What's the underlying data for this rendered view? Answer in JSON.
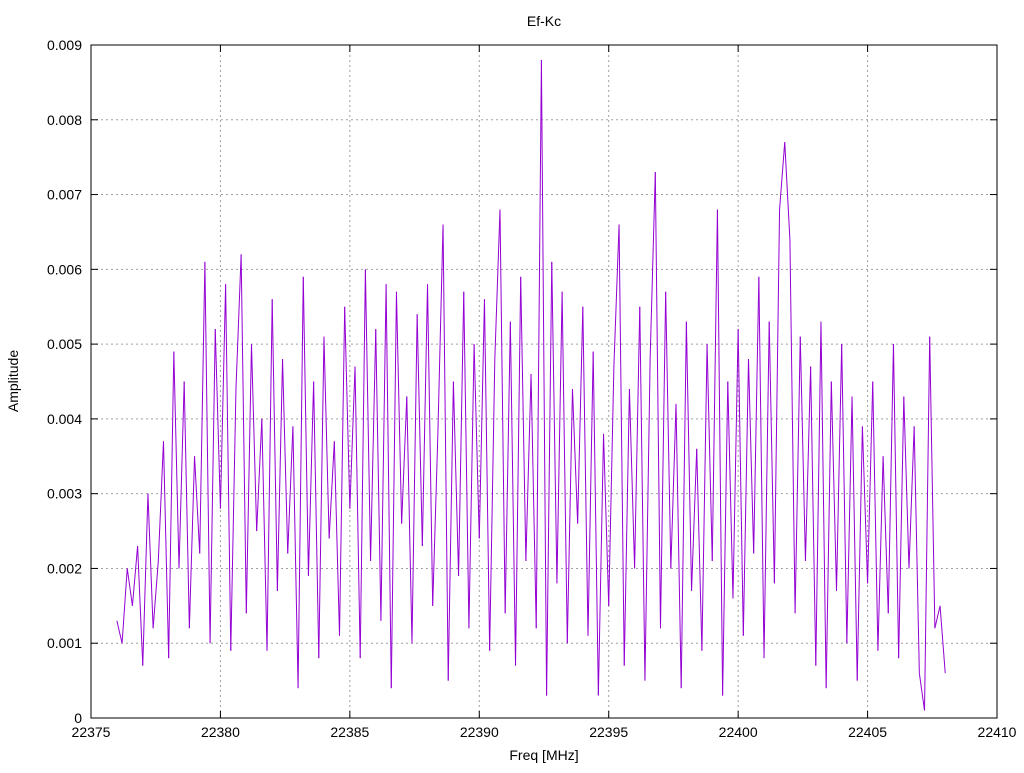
{
  "chart_data": {
    "type": "line",
    "title": "Ef-Kc",
    "xlabel": "Freq [MHz]",
    "ylabel": "Amplitude",
    "xlim": [
      22375,
      22410
    ],
    "ylim": [
      0,
      0.009
    ],
    "xticks": [
      "22375",
      "22380",
      "22385",
      "22390",
      "22395",
      "22400",
      "22405",
      "22410"
    ],
    "yticks": [
      "0",
      "0.001",
      "0.002",
      "0.003",
      "0.004",
      "0.005",
      "0.006",
      "0.007",
      "0.008",
      "0.009"
    ],
    "grid": true,
    "color": "#9400d3",
    "series": [
      {
        "x": [
          22376.0,
          22376.2,
          22376.4,
          22376.6,
          22376.8,
          22377.0,
          22377.2,
          22377.4,
          22377.6,
          22377.8,
          22378.0,
          22378.2,
          22378.4,
          22378.6,
          22378.8,
          22379.0,
          22379.2,
          22379.4,
          22379.6,
          22379.8,
          22380.0,
          22380.2,
          22380.4,
          22380.6,
          22380.8,
          22381.0,
          22381.2,
          22381.4,
          22381.6,
          22381.8,
          22382.0,
          22382.2,
          22382.4,
          22382.6,
          22382.8,
          22383.0,
          22383.2,
          22383.4,
          22383.6,
          22383.8,
          22384.0,
          22384.2,
          22384.4,
          22384.6,
          22384.8,
          22385.0,
          22385.2,
          22385.4,
          22385.6,
          22385.8,
          22386.0,
          22386.2,
          22386.4,
          22386.6,
          22386.8,
          22387.0,
          22387.2,
          22387.4,
          22387.6,
          22387.8,
          22388.0,
          22388.2,
          22388.4,
          22388.6,
          22388.8,
          22389.0,
          22389.2,
          22389.4,
          22389.6,
          22389.8,
          22390.0,
          22390.2,
          22390.4,
          22390.6,
          22390.8,
          22391.0,
          22391.2,
          22391.4,
          22391.6,
          22391.8,
          22392.0,
          22392.2,
          22392.4,
          22392.6,
          22392.8,
          22393.0,
          22393.2,
          22393.4,
          22393.6,
          22393.8,
          22394.0,
          22394.2,
          22394.4,
          22394.6,
          22394.8,
          22395.0,
          22395.2,
          22395.4,
          22395.6,
          22395.8,
          22396.0,
          22396.2,
          22396.4,
          22396.6,
          22396.8,
          22397.0,
          22397.2,
          22397.4,
          22397.6,
          22397.8,
          22398.0,
          22398.2,
          22398.4,
          22398.6,
          22398.8,
          22399.0,
          22399.2,
          22399.4,
          22399.6,
          22399.8,
          22400.0,
          22400.2,
          22400.4,
          22400.6,
          22400.8,
          22401.0,
          22401.2,
          22401.4,
          22401.6,
          22401.8,
          22402.0,
          22402.2,
          22402.4,
          22402.6,
          22402.8,
          22403.0,
          22403.2,
          22403.4,
          22403.6,
          22403.8,
          22404.0,
          22404.2,
          22404.4,
          22404.6,
          22404.8,
          22405.0,
          22405.2,
          22405.4,
          22405.6,
          22405.8,
          22406.0,
          22406.2,
          22406.4,
          22406.6,
          22406.8,
          22407.0,
          22407.2,
          22407.4,
          22407.6,
          22407.8,
          22408.0
        ],
        "y": [
          0.0013,
          0.001,
          0.002,
          0.0015,
          0.0023,
          0.0007,
          0.003,
          0.0012,
          0.0021,
          0.0037,
          0.0008,
          0.0049,
          0.002,
          0.0045,
          0.0012,
          0.0035,
          0.0022,
          0.0061,
          0.001,
          0.0052,
          0.0028,
          0.0058,
          0.0009,
          0.0044,
          0.0062,
          0.0014,
          0.005,
          0.0025,
          0.004,
          0.0009,
          0.0056,
          0.0017,
          0.0048,
          0.0022,
          0.0039,
          0.0004,
          0.0059,
          0.0019,
          0.0045,
          0.0008,
          0.0051,
          0.0024,
          0.0037,
          0.0011,
          0.0055,
          0.0028,
          0.0047,
          0.0008,
          0.006,
          0.0021,
          0.0052,
          0.0013,
          0.0058,
          0.0004,
          0.0057,
          0.0026,
          0.0043,
          0.001,
          0.0054,
          0.0023,
          0.0058,
          0.0015,
          0.0038,
          0.0066,
          0.0005,
          0.0045,
          0.0019,
          0.0057,
          0.0012,
          0.005,
          0.0024,
          0.0056,
          0.0009,
          0.0048,
          0.0068,
          0.0014,
          0.0053,
          0.0007,
          0.0059,
          0.0021,
          0.0046,
          0.0012,
          0.0088,
          0.0003,
          0.0061,
          0.0018,
          0.0057,
          0.001,
          0.0044,
          0.0026,
          0.0055,
          0.0011,
          0.0049,
          0.0003,
          0.0038,
          0.0015,
          0.0047,
          0.0066,
          0.0007,
          0.0044,
          0.002,
          0.0055,
          0.0005,
          0.0048,
          0.0073,
          0.0012,
          0.0057,
          0.002,
          0.0042,
          0.0004,
          0.0053,
          0.0017,
          0.0036,
          0.0009,
          0.005,
          0.0021,
          0.0068,
          0.0003,
          0.0045,
          0.0016,
          0.0052,
          0.0011,
          0.0048,
          0.0022,
          0.0059,
          0.0008,
          0.0053,
          0.0018,
          0.0068,
          0.0077,
          0.0064,
          0.0014,
          0.0051,
          0.0021,
          0.0047,
          0.0007,
          0.0053,
          0.0004,
          0.0045,
          0.0017,
          0.005,
          0.001,
          0.0043,
          0.0005,
          0.0039,
          0.0018,
          0.0045,
          0.0009,
          0.0035,
          0.0014,
          0.005,
          0.0008,
          0.0043,
          0.002,
          0.0039,
          0.0006,
          0.0001,
          0.0051,
          0.0012,
          0.0015,
          0.0006
        ]
      }
    ]
  }
}
